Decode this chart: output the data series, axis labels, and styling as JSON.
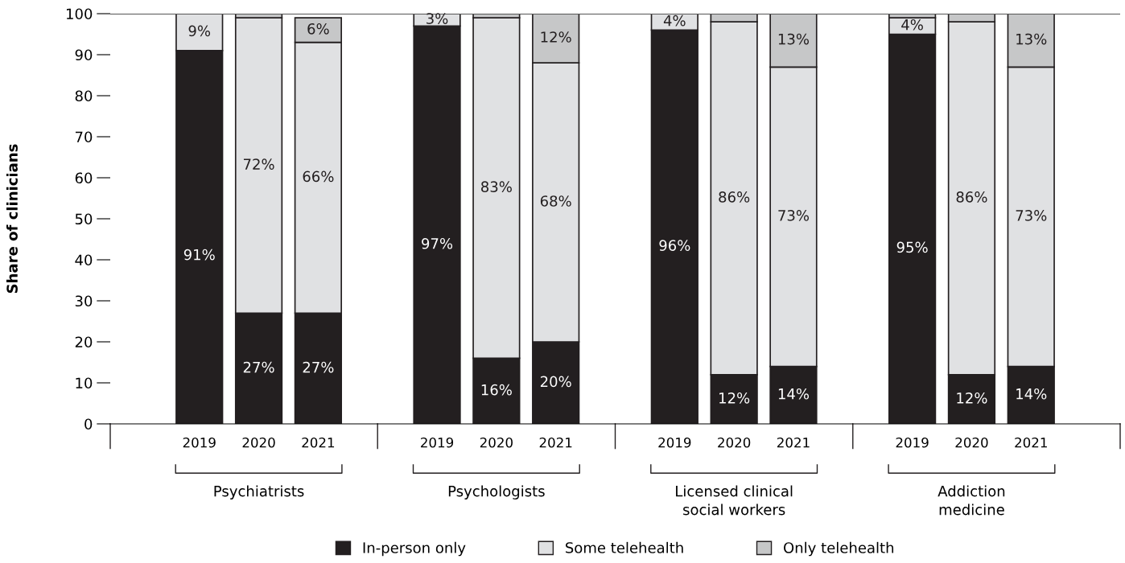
{
  "chart_data": {
    "type": "bar",
    "stacked": true,
    "ylabel": "Share of clinicians",
    "categories": [
      null,
      "2019",
      "2020",
      "2021",
      null,
      "2019",
      "2020",
      "2021",
      null,
      "2019",
      "2020",
      "2021",
      null,
      "2019",
      "2020",
      "2021",
      null
    ],
    "series": [
      {
        "name": "In-person only",
        "color": "#231f20",
        "values": [
          null,
          91,
          27,
          27,
          null,
          97,
          16,
          20,
          null,
          96,
          12,
          14,
          null,
          95,
          12,
          14,
          null
        ],
        "value_labels": [
          null,
          "91%",
          "27%",
          "27%",
          null,
          "97%",
          "16%",
          "20%",
          null,
          "96%",
          "12%",
          "14%",
          null,
          "95%",
          "12%",
          "14%",
          null
        ]
      },
      {
        "name": "Some telehealth",
        "color": "#e0e1e3",
        "values": [
          null,
          9,
          72,
          66,
          null,
          3,
          83,
          68,
          null,
          4,
          86,
          73,
          null,
          4,
          86,
          73,
          null
        ],
        "value_labels": [
          null,
          "9%",
          "72%",
          "66%",
          null,
          "3%",
          "83%",
          "68%",
          null,
          "4%",
          "86%",
          "73%",
          null,
          "4%",
          "86%",
          "73%",
          null
        ]
      },
      {
        "name": "Only telehealth",
        "color": "#c6c7c8",
        "values": [
          null,
          0,
          1,
          6,
          null,
          0,
          1,
          12,
          null,
          0,
          2,
          13,
          null,
          1,
          2,
          13,
          null
        ],
        "value_labels": [
          null,
          null,
          null,
          "6%",
          null,
          null,
          null,
          "12%",
          null,
          null,
          null,
          "13%",
          null,
          null,
          null,
          "13%",
          null
        ]
      }
    ],
    "annotations": [
      "Psychiatrists",
      "Psychologists",
      "Licensed clinical\nsocial workers",
      "Addiction\nmedicine"
    ],
    "ylim": [
      0,
      100
    ],
    "yticks": [
      0,
      10,
      20,
      30,
      40,
      50,
      60,
      70,
      80,
      90,
      100
    ],
    "grid": false,
    "legend": "bottom"
  }
}
